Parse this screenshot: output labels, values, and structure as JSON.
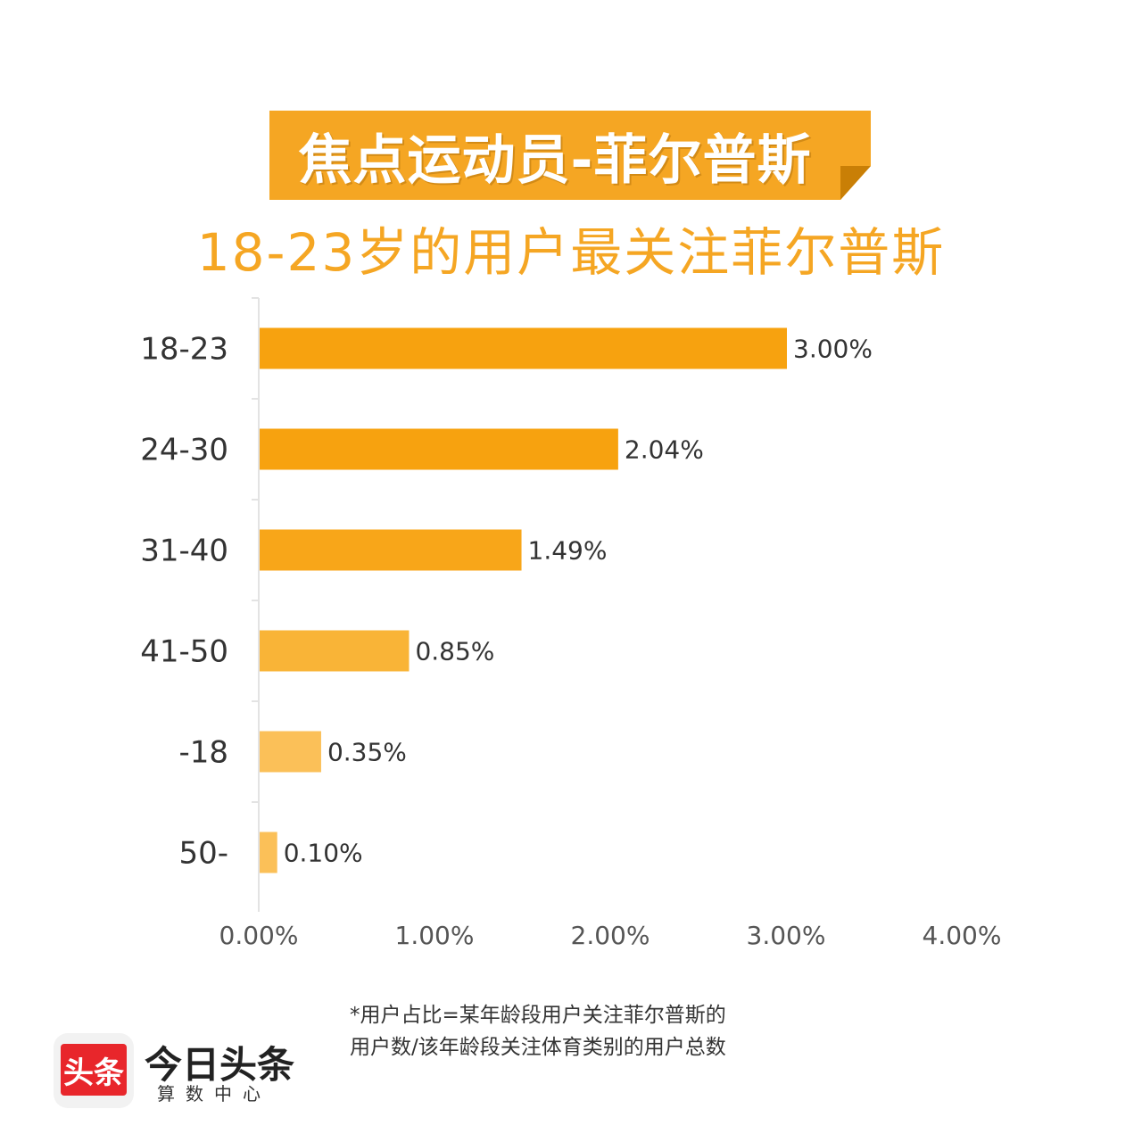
{
  "title": "焦点运动员-菲尔普斯",
  "subtitle": "18-23岁的用户最关注菲尔普斯",
  "footnote": {
    "line1": "*用户占比=某年龄段用户关注菲尔普斯的",
    "line2": "用户数/该年龄段关注体育类别的用户总数"
  },
  "logo": {
    "icon_text": "头条",
    "name": "今日头条",
    "sub": "算数中心"
  },
  "colors": {
    "accent": "#f5a623",
    "bars": [
      "#f7a20f",
      "#f7a20f",
      "#f8a619",
      "#f9b437",
      "#fbc058",
      "#fbc058"
    ]
  },
  "chart_data": {
    "type": "bar",
    "orientation": "horizontal",
    "categories": [
      "18-23",
      "24-30",
      "31-40",
      "41-50",
      "-18",
      "50-"
    ],
    "values": [
      3.0,
      2.04,
      1.49,
      0.85,
      0.35,
      0.1
    ],
    "value_labels": [
      "3.00%",
      "2.04%",
      "1.49%",
      "0.85%",
      "0.35%",
      "0.10%"
    ],
    "xlim": [
      0,
      4
    ],
    "x_ticks": [
      0,
      1,
      2,
      3,
      4
    ],
    "x_tick_labels": [
      "0.00%",
      "1.00%",
      "2.00%",
      "3.00%",
      "4.00%"
    ],
    "grid": false,
    "legend": "none"
  }
}
